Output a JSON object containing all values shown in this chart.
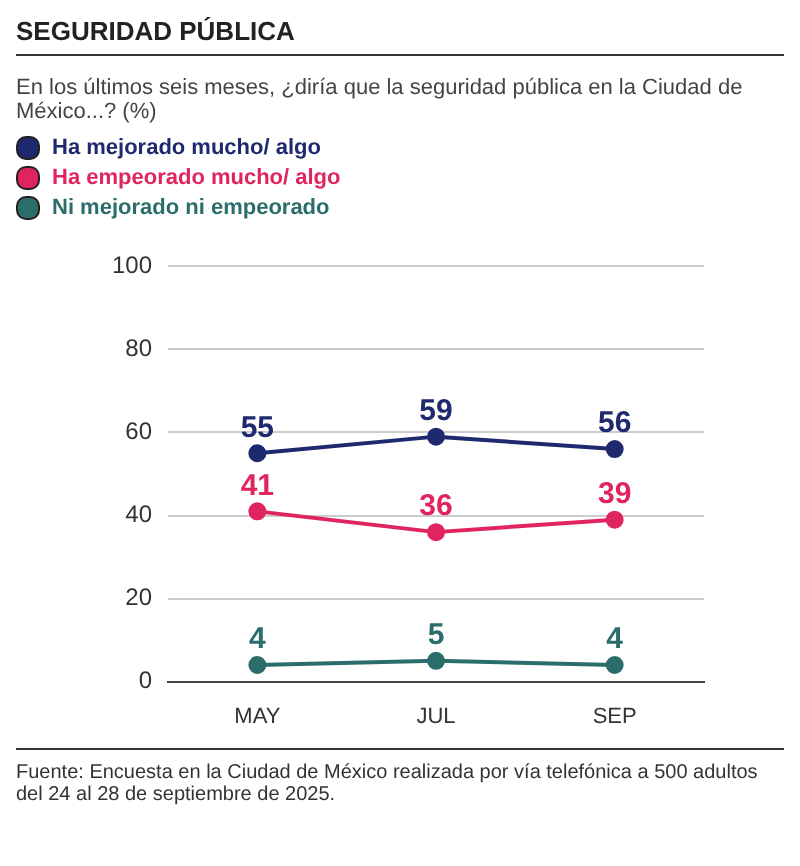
{
  "chart_data": {
    "type": "line",
    "title": "SEGURIDAD PÚBLICA",
    "subtitle": "En los últimos seis meses, ¿diría que la seguridad pública en la Ciudad de México...? (%)",
    "categories": [
      "MAY",
      "JUL",
      "SEP"
    ],
    "series": [
      {
        "name": "Ha mejorado mucho/ algo",
        "color": "#1f2a6e",
        "values": [
          55,
          59,
          56
        ]
      },
      {
        "name": "Ha empeorado mucho/ algo",
        "color": "#e0245e",
        "values": [
          41,
          36,
          39
        ]
      },
      {
        "name": "Ni mejorado ni empeorado",
        "color": "#2b6d6a",
        "values": [
          4,
          5,
          4
        ]
      }
    ],
    "ylim": [
      0,
      100
    ],
    "yticks": [
      0,
      20,
      40,
      60,
      80,
      100
    ],
    "grid": "y",
    "legend": "top left",
    "marker": "circle",
    "line_style": "solid",
    "data_labels": true,
    "annotations": [
      "Fuente: Encuesta en la Ciudad de México realizada por vía telefónica a 500 adultos del 24 al 28 de septiembre de 2025."
    ]
  }
}
